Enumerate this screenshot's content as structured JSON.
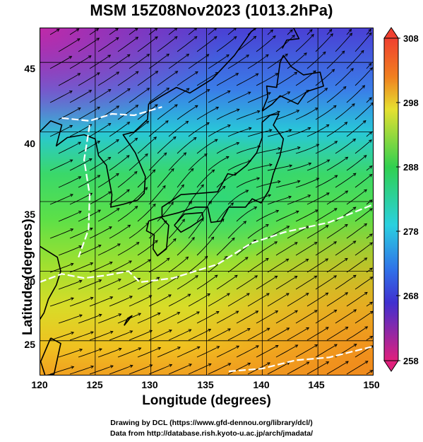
{
  "title": "MSM 15Z08Nov2023 (1013.2hPa)",
  "axes": {
    "xlabel": "Longitude (degrees)",
    "ylabel": "Latitude  (degrees)",
    "xticks": [
      "120",
      "125",
      "130",
      "135",
      "140",
      "145",
      "150"
    ],
    "yticks": [
      "45",
      "40",
      "35",
      "30",
      "25"
    ]
  },
  "colorbar": {
    "labels": [
      "308",
      "298",
      "288",
      "278",
      "268",
      "258"
    ],
    "range": [
      258,
      308
    ],
    "unit_hint": "K",
    "colors": [
      "#e0207c",
      "#4030d0",
      "#2ad0e0",
      "#30d050",
      "#e0e030",
      "#f08020",
      "#f04030"
    ]
  },
  "map": {
    "lon_range": [
      120,
      150
    ],
    "lat_range": [
      22.5,
      47.5
    ],
    "grid_lon": [
      125,
      130,
      135,
      140,
      145
    ],
    "grid_lat": [
      25,
      30,
      35,
      40,
      45
    ],
    "coastline_color": "#000000",
    "contour_color": "#ffffff",
    "streamline_color": "#000000"
  },
  "credits": {
    "line1": "Drawing by DCL (https://www.gfd-dennou.org/library/dcl/)",
    "line2": "Data from http://database.rish.kyoto-u.ac.jp/arch/jmadata/"
  }
}
